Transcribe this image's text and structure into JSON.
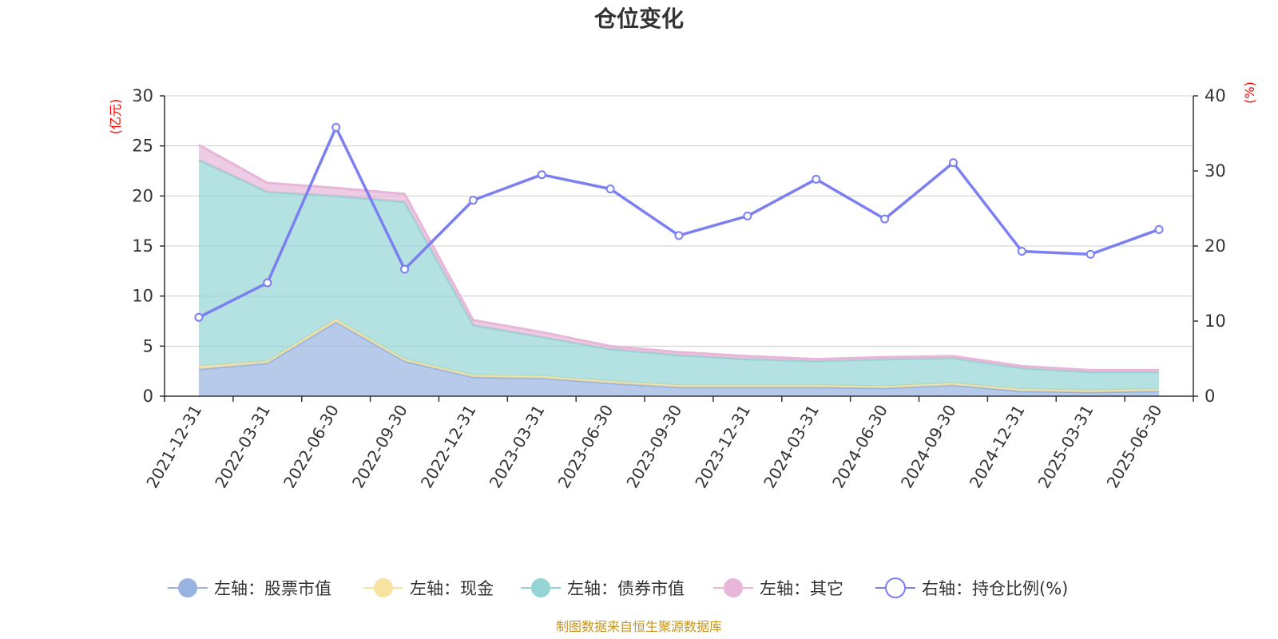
{
  "chart_data": {
    "type": "area",
    "title": "仓位变化",
    "y_left_unit": "(亿元)",
    "y_right_unit": "(%)",
    "ylim_left": [
      0,
      30
    ],
    "ylim_right": [
      0,
      40
    ],
    "y_left_ticks": [
      "0",
      "5",
      "10",
      "15",
      "20",
      "25",
      "30"
    ],
    "y_right_ticks": [
      "0",
      "10",
      "20",
      "30",
      "40"
    ],
    "grid": true,
    "legend_position": "bottom",
    "stacked": true,
    "categories": [
      "2021-12-31",
      "2022-03-31",
      "2022-06-30",
      "2022-09-30",
      "2022-12-31",
      "2023-03-31",
      "2023-06-30",
      "2023-09-30",
      "2023-12-31",
      "2024-03-31",
      "2024-06-30",
      "2024-09-30",
      "2024-12-31",
      "2025-03-31",
      "2025-06-30"
    ],
    "series": [
      {
        "name": "左轴：股票市值",
        "axis": "left",
        "kind": "area",
        "color": "#98b3e0",
        "values": [
          2.7,
          3.3,
          7.4,
          3.5,
          1.9,
          1.8,
          1.3,
          0.9,
          0.9,
          0.9,
          0.8,
          1.1,
          0.5,
          0.4,
          0.5
        ]
      },
      {
        "name": "左轴：现金",
        "axis": "left",
        "kind": "area",
        "color": "#f6e3a1",
        "values": [
          0.3,
          0.2,
          0.3,
          0.2,
          0.2,
          0.2,
          0.2,
          0.2,
          0.2,
          0.2,
          0.2,
          0.2,
          0.2,
          0.2,
          0.2
        ]
      },
      {
        "name": "左轴：债券市值",
        "axis": "left",
        "kind": "area",
        "color": "#94d4d4",
        "values": [
          20.6,
          16.9,
          12.3,
          15.7,
          5.0,
          3.9,
          3.2,
          3.0,
          2.6,
          2.4,
          2.7,
          2.5,
          2.1,
          1.8,
          1.7
        ]
      },
      {
        "name": "左轴：其它",
        "axis": "left",
        "kind": "area",
        "color": "#e7b6d8",
        "values": [
          1.5,
          0.9,
          0.8,
          0.8,
          0.5,
          0.5,
          0.3,
          0.3,
          0.3,
          0.2,
          0.2,
          0.2,
          0.2,
          0.2,
          0.2
        ]
      },
      {
        "name": "右轴：持仓比例(%)",
        "axis": "right",
        "kind": "line",
        "color": "#7b7ff0",
        "values": [
          10.5,
          15.1,
          35.8,
          16.9,
          26.1,
          29.5,
          27.6,
          21.4,
          24.0,
          28.9,
          23.6,
          31.1,
          19.3,
          18.9,
          22.2
        ]
      }
    ]
  },
  "footer": "制图数据来自恒生聚源数据库"
}
